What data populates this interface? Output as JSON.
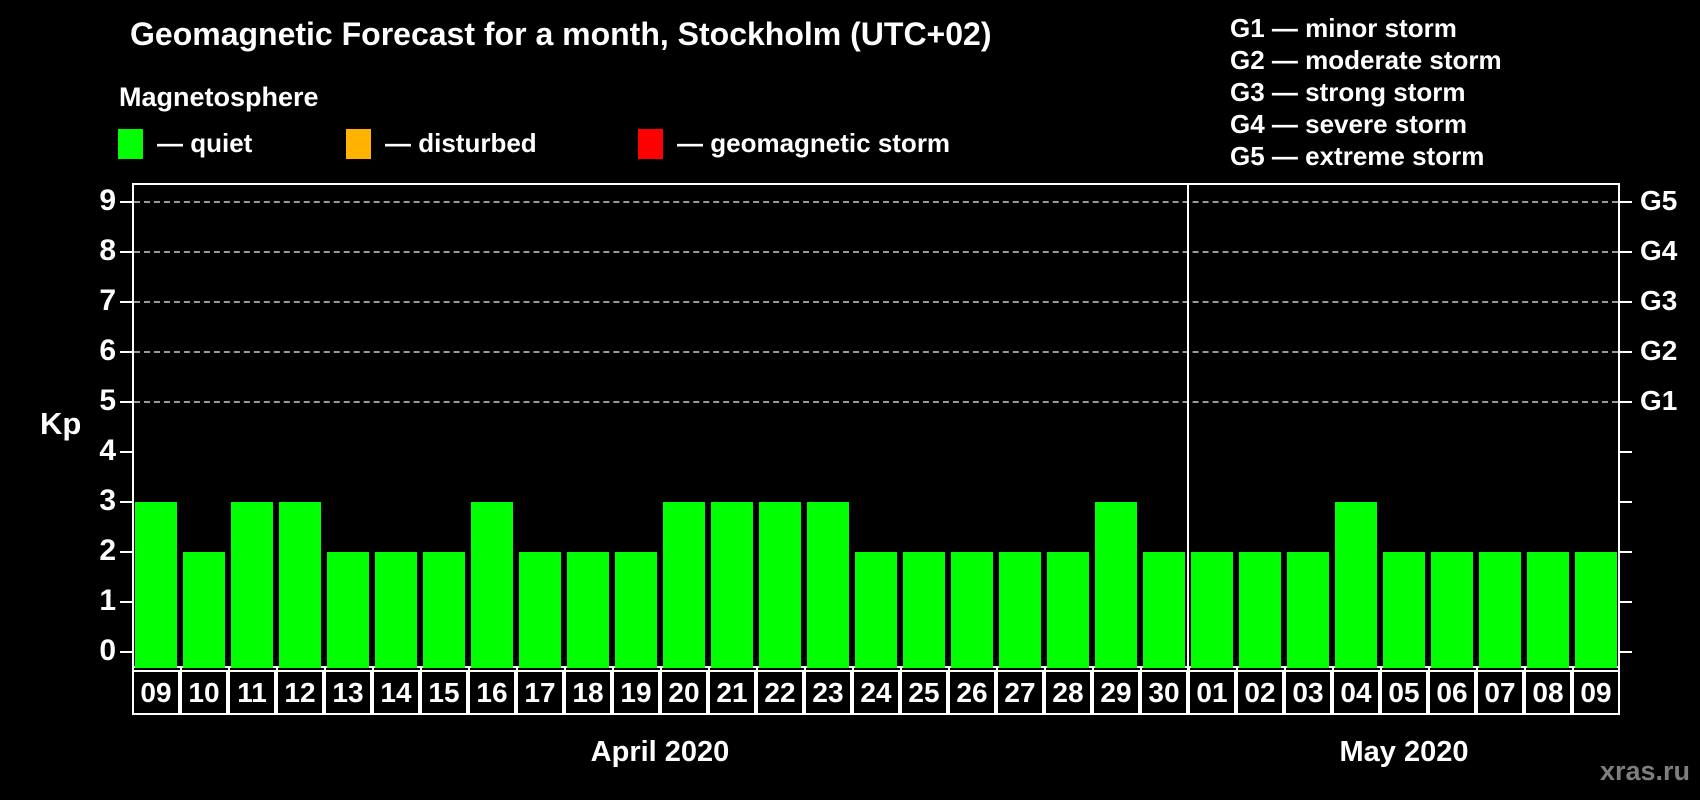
{
  "title": "Geomagnetic Forecast for a month, Stockholm (UTC+02)",
  "legend": {
    "heading": "Magnetosphere",
    "items": [
      {
        "icon": "quiet-color-swatch",
        "color": "#00ff00",
        "label": "— quiet"
      },
      {
        "icon": "disturbed-color-swatch",
        "color": "#ffb300",
        "label": "— disturbed"
      },
      {
        "icon": "storm-color-swatch",
        "color": "#ff0000",
        "label": "— geomagnetic storm"
      }
    ]
  },
  "storm_scale_legend": [
    "G1 — minor storm",
    "G2 — moderate storm",
    "G3 — strong storm",
    "G4 — severe storm",
    "G5 — extreme storm"
  ],
  "watermark": "xras.ru",
  "chart_data": {
    "type": "bar",
    "title": "Geomagnetic Forecast for a month, Stockholm (UTC+02)",
    "ylabel": "Kp",
    "ylim": [
      0,
      9
    ],
    "yticks": [
      "0",
      "1",
      "2",
      "3",
      "4",
      "5",
      "6",
      "7",
      "8",
      "9"
    ],
    "grid": "dashed horizontal gridlines at Kp 5-9 only",
    "legend_position": "top",
    "bar_color": "#00ff00",
    "grid_color": "#9a9a9a",
    "right_axis_labels": [
      {
        "kp": 5,
        "label": "G1"
      },
      {
        "kp": 6,
        "label": "G2"
      },
      {
        "kp": 7,
        "label": "G3"
      },
      {
        "kp": 8,
        "label": "G4"
      },
      {
        "kp": 9,
        "label": "G5"
      }
    ],
    "months": [
      {
        "label": "April 2020",
        "days": [
          "09",
          "10",
          "11",
          "12",
          "13",
          "14",
          "15",
          "16",
          "17",
          "18",
          "19",
          "20",
          "21",
          "22",
          "23",
          "24",
          "25",
          "26",
          "27",
          "28",
          "29",
          "30"
        ],
        "values": [
          3,
          2,
          3,
          3,
          2,
          2,
          2,
          3,
          2,
          2,
          2,
          3,
          3,
          3,
          3,
          2,
          2,
          2,
          2,
          2,
          3,
          2
        ]
      },
      {
        "label": "May 2020",
        "days": [
          "01",
          "02",
          "03",
          "04",
          "05",
          "06",
          "07",
          "08",
          "09"
        ],
        "values": [
          2,
          2,
          2,
          3,
          2,
          2,
          2,
          2,
          2
        ]
      }
    ]
  }
}
